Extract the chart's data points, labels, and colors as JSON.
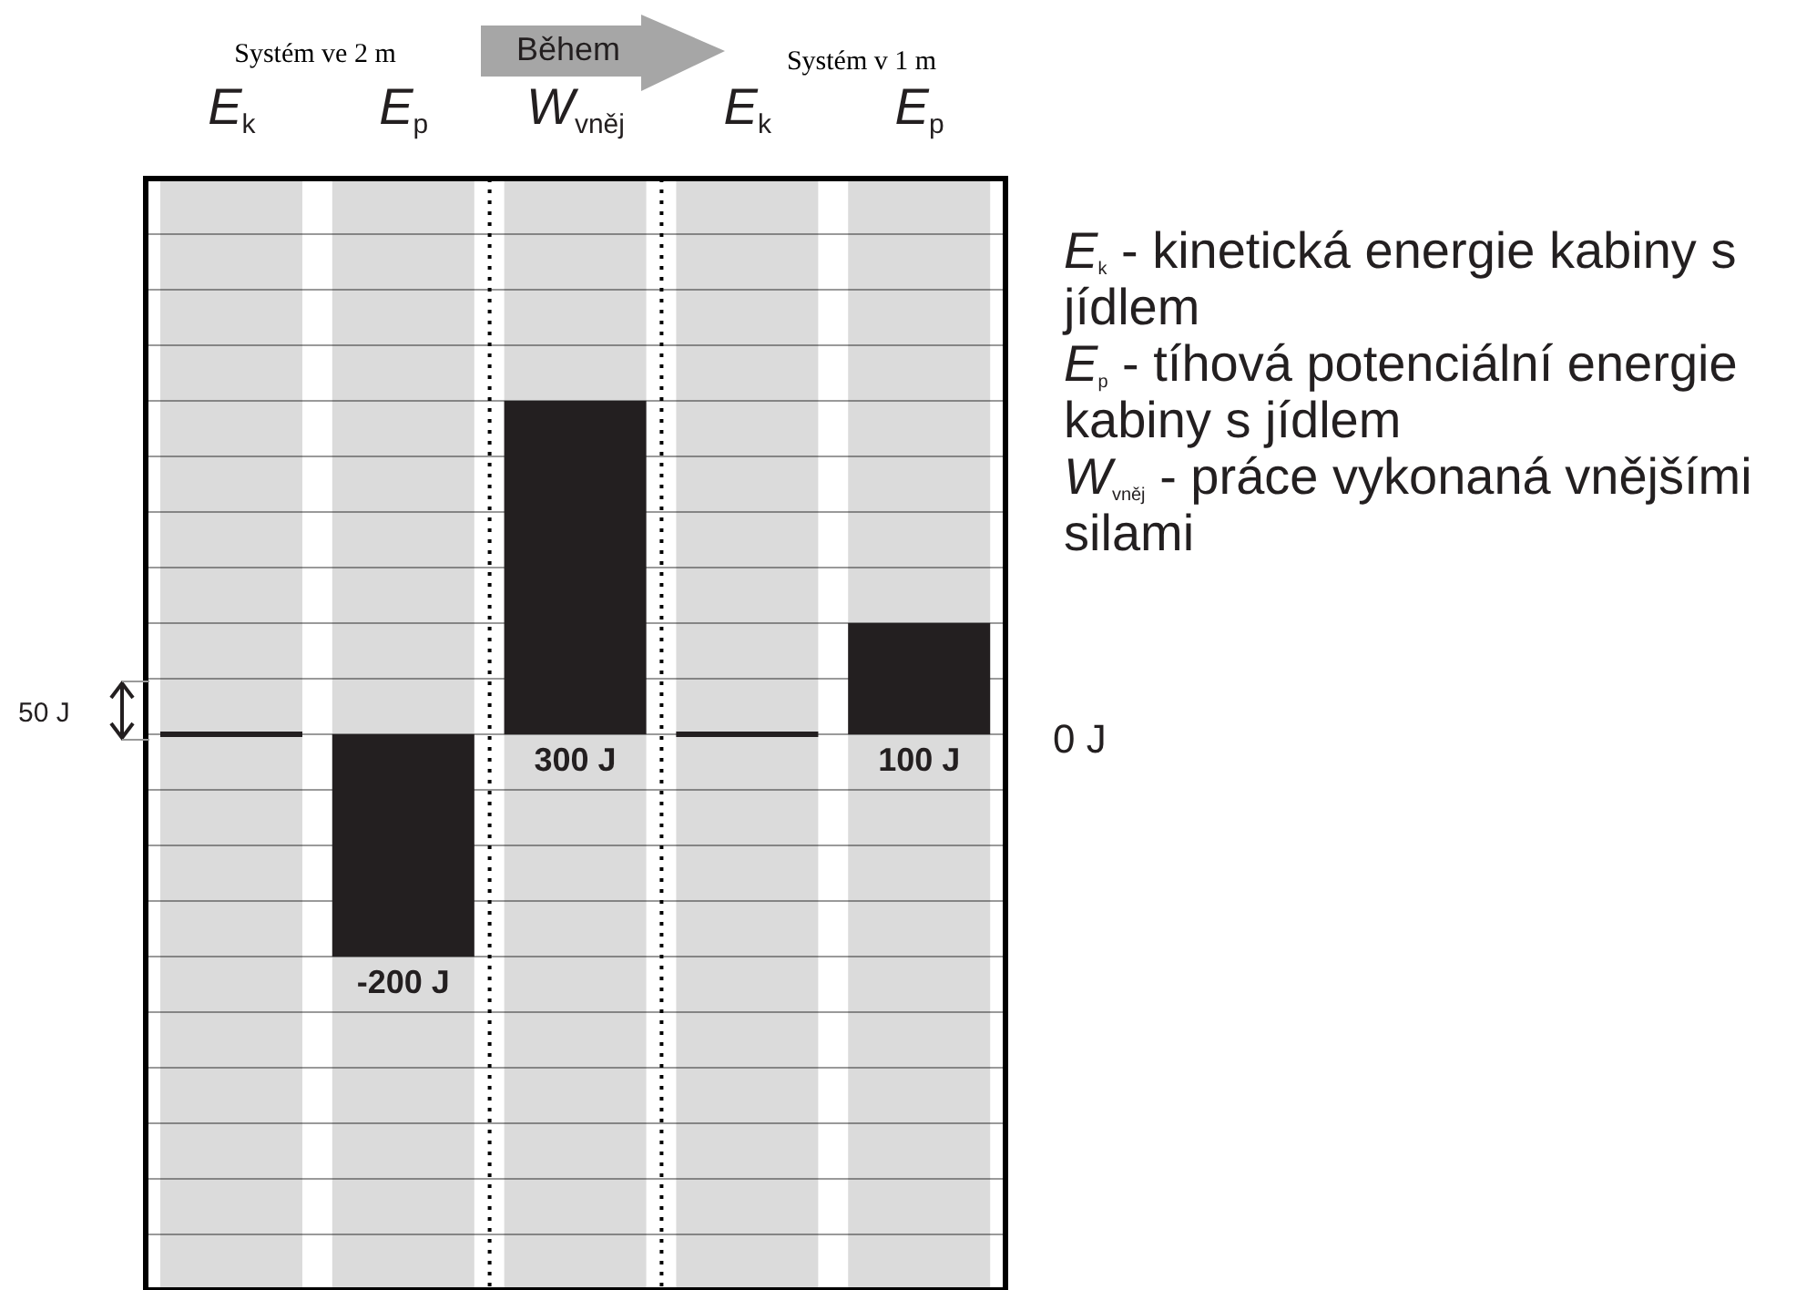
{
  "chart_data": {
    "type": "bar",
    "categories": [
      "E$_{k}$",
      "E$_{p}$",
      "W$_{vněj}$",
      "E$_{k}$",
      "E$_{p}$"
    ],
    "values": [
      0,
      -200,
      300,
      0,
      100
    ],
    "color": "#231f20",
    "value_labels": [
      null,
      "-200 J",
      "300 J",
      null,
      "100 J"
    ],
    "grid": "y",
    "annotations": [
      "Systém ve 2 m",
      "Během",
      "Systém v 1 m",
      "50 J",
      "0 J",
      "E$_{k}$ - kinetická energie kabiny s jídlem",
      "E$_{p}$ - tíhová potenciální energie kabiny s jídlem",
      "W$_{vněj}$ - práce vykonaná vnějšími silami"
    ]
  }
}
